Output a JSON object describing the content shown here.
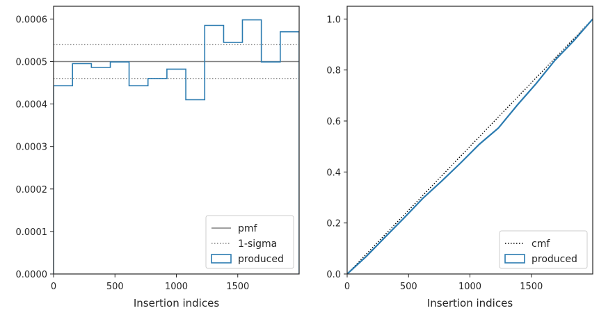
{
  "chart_data": [
    {
      "type": "histogram-step",
      "xlabel": "Insertion indices",
      "ylabel": "",
      "xlim": [
        0,
        2000
      ],
      "ylim": [
        0,
        0.00063
      ],
      "xticks": [
        0,
        500,
        1000,
        1500
      ],
      "xtick_labels": [
        "0",
        "500",
        "1000",
        "1500"
      ],
      "yticks": [
        0,
        0.0001,
        0.0002,
        0.0003,
        0.0004,
        0.0005,
        0.0006
      ],
      "ytick_labels": [
        "0.0000",
        "0.0001",
        "0.0002",
        "0.0003",
        "0.0004",
        "0.0005",
        "0.0006"
      ],
      "reference_lines": [
        {
          "name": "pmf",
          "y": 0.0005,
          "style": "solid",
          "color": "#808080"
        },
        {
          "name": "1-sigma",
          "y": 0.00054,
          "style": "dotted",
          "color": "#808080"
        },
        {
          "name": "1-sigma",
          "y": 0.00046,
          "style": "dotted",
          "color": "#808080"
        }
      ],
      "series": [
        {
          "name": "produced",
          "color": "#2b7bb0",
          "bin_edges": [
            0,
            154,
            308,
            462,
            615,
            769,
            923,
            1077,
            1231,
            1385,
            1538,
            1692,
            1846,
            2000
          ],
          "values": [
            0.000443,
            0.000495,
            0.000486,
            0.000499,
            0.000443,
            0.00046,
            0.000482,
            0.00041,
            0.000585,
            0.000545,
            0.000598,
            0.000499,
            0.00057
          ]
        }
      ],
      "legend": {
        "position": "lower-right",
        "entries": [
          {
            "label": "pmf",
            "kind": "line-solid",
            "color": "#808080"
          },
          {
            "label": "1-sigma",
            "kind": "line-dotted",
            "color": "#808080"
          },
          {
            "label": "produced",
            "kind": "box",
            "color": "#2b7bb0"
          }
        ]
      }
    },
    {
      "type": "line",
      "xlabel": "Insertion indices",
      "ylabel": "",
      "xlim": [
        0,
        2000
      ],
      "ylim": [
        0,
        1.05
      ],
      "xticks": [
        0,
        500,
        1000,
        1500
      ],
      "xtick_labels": [
        "0",
        "500",
        "1000",
        "1500"
      ],
      "yticks": [
        0,
        0.2,
        0.4,
        0.6,
        0.8,
        1.0
      ],
      "ytick_labels": [
        "0.0",
        "0.2",
        "0.4",
        "0.6",
        "0.8",
        "1.0"
      ],
      "series": [
        {
          "name": "cmf",
          "style": "dotted",
          "color": "#000000",
          "x": [
            0,
            2000
          ],
          "y": [
            0,
            1.0
          ]
        },
        {
          "name": "produced",
          "style": "solid",
          "color": "#2b7bb0",
          "x": [
            0,
            154,
            308,
            462,
            615,
            769,
            923,
            1077,
            1231,
            1385,
            1538,
            1692,
            1846,
            2000
          ],
          "y": [
            0,
            0.068,
            0.144,
            0.219,
            0.296,
            0.364,
            0.435,
            0.509,
            0.572,
            0.662,
            0.746,
            0.838,
            0.915,
            1.0
          ]
        }
      ],
      "legend": {
        "position": "lower-right",
        "entries": [
          {
            "label": "cmf",
            "kind": "line-dotted",
            "color": "#000000"
          },
          {
            "label": "produced",
            "kind": "box",
            "color": "#2b7bb0"
          }
        ]
      }
    }
  ]
}
